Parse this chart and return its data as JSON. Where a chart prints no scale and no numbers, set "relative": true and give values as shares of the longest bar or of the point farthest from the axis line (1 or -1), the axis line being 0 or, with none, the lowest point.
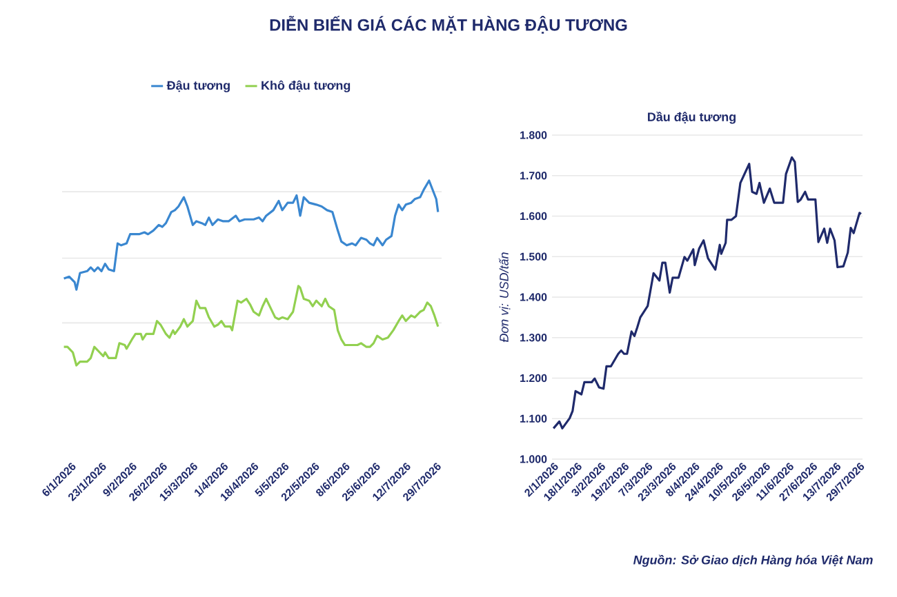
{
  "chart_data": [
    {
      "type": "line",
      "title": "DIỄN BIẾN GIÁ CÁC MẶT HÀNG ĐẬU TƯƠNG",
      "relative": true,
      "legend": "top",
      "grid": "y",
      "tick_labels": "x",
      "xlim": [
        "2026-01-01",
        "2026-08-01"
      ],
      "xticks": [
        {
          "value": "2026-01-06",
          "label": "6/1/2026"
        },
        {
          "value": "2026-01-23",
          "label": "23/1/2026"
        },
        {
          "value": "2026-02-09",
          "label": "9/2/2026"
        },
        {
          "value": "2026-02-26",
          "label": "26/2/2026"
        },
        {
          "value": "2026-03-15",
          "label": "15/3/2026"
        },
        {
          "value": "2026-04-01",
          "label": "1/4/2026"
        },
        {
          "value": "2026-04-18",
          "label": "18/4/2026"
        },
        {
          "value": "2026-05-05",
          "label": "5/5/2026"
        },
        {
          "value": "2026-05-22",
          "label": "22/5/2026"
        },
        {
          "value": "2026-06-08",
          "label": "8/6/2026"
        },
        {
          "value": "2026-06-25",
          "label": "25/6/2026"
        },
        {
          "value": "2026-07-12",
          "label": "12/7/2026"
        },
        {
          "value": "2026-07-29",
          "label": "29/7/2026"
        }
      ],
      "series": [
        {
          "name": "Đậu tương",
          "color": "#3a87d0",
          "x": [
            "2026-01-02",
            "2026-01-05",
            "2026-01-08",
            "2026-01-09",
            "2026-01-11",
            "2026-01-15",
            "2026-01-17",
            "2026-01-19",
            "2026-01-21",
            "2026-01-23",
            "2026-01-25",
            "2026-01-27",
            "2026-01-30",
            "2026-02-01",
            "2026-02-03",
            "2026-02-06",
            "2026-02-08",
            "2026-02-13",
            "2026-02-16",
            "2026-02-18",
            "2026-02-21",
            "2026-02-24",
            "2026-02-26",
            "2026-02-28",
            "2026-03-03",
            "2026-03-05",
            "2026-03-07",
            "2026-03-10",
            "2026-03-12",
            "2026-03-15",
            "2026-03-17",
            "2026-03-20",
            "2026-03-22",
            "2026-03-24",
            "2026-03-26",
            "2026-03-29",
            "2026-04-01",
            "2026-04-04",
            "2026-04-08",
            "2026-04-10",
            "2026-04-13",
            "2026-04-16",
            "2026-04-18",
            "2026-04-21",
            "2026-04-23",
            "2026-04-25",
            "2026-04-29",
            "2026-05-02",
            "2026-05-04",
            "2026-05-07",
            "2026-05-10",
            "2026-05-12",
            "2026-05-14",
            "2026-05-16",
            "2026-05-19",
            "2026-05-23",
            "2026-05-26",
            "2026-05-29",
            "2026-06-01",
            "2026-06-04",
            "2026-06-06",
            "2026-06-09",
            "2026-06-12",
            "2026-06-14",
            "2026-06-17",
            "2026-06-20",
            "2026-06-22",
            "2026-06-24",
            "2026-06-26",
            "2026-06-29",
            "2026-07-01",
            "2026-07-04",
            "2026-07-06",
            "2026-07-08",
            "2026-07-10",
            "2026-07-12",
            "2026-07-15",
            "2026-07-17",
            "2026-07-20",
            "2026-07-22",
            "2026-07-25",
            "2026-07-27",
            "2026-07-29",
            "2026-07-30"
          ],
          "values": [
            0.47,
            0.48,
            0.45,
            0.41,
            0.5,
            0.51,
            0.53,
            0.51,
            0.53,
            0.51,
            0.55,
            0.52,
            0.51,
            0.66,
            0.65,
            0.66,
            0.71,
            0.71,
            0.72,
            0.71,
            0.73,
            0.76,
            0.75,
            0.77,
            0.83,
            0.84,
            0.86,
            0.91,
            0.86,
            0.76,
            0.78,
            0.77,
            0.76,
            0.8,
            0.76,
            0.79,
            0.78,
            0.78,
            0.81,
            0.78,
            0.79,
            0.79,
            0.79,
            0.8,
            0.78,
            0.81,
            0.84,
            0.89,
            0.84,
            0.88,
            0.88,
            0.92,
            0.81,
            0.91,
            0.88,
            0.87,
            0.86,
            0.84,
            0.83,
            0.73,
            0.67,
            0.65,
            0.66,
            0.65,
            0.69,
            0.68,
            0.66,
            0.65,
            0.69,
            0.65,
            0.68,
            0.7,
            0.81,
            0.87,
            0.84,
            0.87,
            0.88,
            0.9,
            0.91,
            0.95,
            1,
            0.95,
            0.9,
            0.83
          ]
        },
        {
          "name": "Khô đậu tương",
          "color": "#92d050",
          "x": [
            "2026-01-02",
            "2026-01-04",
            "2026-01-07",
            "2026-01-09",
            "2026-01-11",
            "2026-01-15",
            "2026-01-17",
            "2026-01-19",
            "2026-01-22",
            "2026-01-24",
            "2026-01-25",
            "2026-01-27",
            "2026-01-30",
            "2026-01-31",
            "2026-02-02",
            "2026-02-05",
            "2026-02-06",
            "2026-02-09",
            "2026-02-11",
            "2026-02-14",
            "2026-02-15",
            "2026-02-17",
            "2026-02-21",
            "2026-02-23",
            "2026-02-25",
            "2026-02-28",
            "2026-03-02",
            "2026-03-04",
            "2026-03-05",
            "2026-03-08",
            "2026-03-10",
            "2026-03-12",
            "2026-03-15",
            "2026-03-17",
            "2026-03-19",
            "2026-03-22",
            "2026-03-24",
            "2026-03-27",
            "2026-03-29",
            "2026-03-31",
            "2026-04-02",
            "2026-04-05",
            "2026-04-06",
            "2026-04-09",
            "2026-04-11",
            "2026-04-14",
            "2026-04-16",
            "2026-04-18",
            "2026-04-21",
            "2026-04-23",
            "2026-04-25",
            "2026-04-28",
            "2026-04-30",
            "2026-05-02",
            "2026-05-04",
            "2026-05-07",
            "2026-05-10",
            "2026-05-13",
            "2026-05-14",
            "2026-05-16",
            "2026-05-19",
            "2026-05-21",
            "2026-05-23",
            "2026-05-26",
            "2026-05-28",
            "2026-05-30",
            "2026-06-02",
            "2026-06-04",
            "2026-06-06",
            "2026-06-08",
            "2026-06-12",
            "2026-06-15",
            "2026-06-17",
            "2026-06-20",
            "2026-06-22",
            "2026-06-24",
            "2026-06-26",
            "2026-06-29",
            "2026-07-02",
            "2026-07-05",
            "2026-07-08",
            "2026-07-10",
            "2026-07-12",
            "2026-07-15",
            "2026-07-17",
            "2026-07-20",
            "2026-07-22",
            "2026-07-24",
            "2026-07-26",
            "2026-07-28",
            "2026-07-29",
            "2026-07-30"
          ],
          "values": [
            0.1,
            0.1,
            0.07,
            0,
            0.02,
            0.02,
            0.04,
            0.1,
            0.07,
            0.05,
            0.07,
            0.04,
            0.04,
            0.04,
            0.12,
            0.11,
            0.09,
            0.14,
            0.17,
            0.17,
            0.14,
            0.17,
            0.17,
            0.24,
            0.22,
            0.17,
            0.15,
            0.19,
            0.17,
            0.21,
            0.25,
            0.21,
            0.24,
            0.35,
            0.31,
            0.31,
            0.26,
            0.21,
            0.22,
            0.24,
            0.21,
            0.21,
            0.19,
            0.35,
            0.34,
            0.36,
            0.33,
            0.29,
            0.27,
            0.32,
            0.36,
            0.3,
            0.26,
            0.25,
            0.26,
            0.25,
            0.29,
            0.43,
            0.42,
            0.36,
            0.35,
            0.32,
            0.35,
            0.32,
            0.36,
            0.32,
            0.3,
            0.19,
            0.14,
            0.11,
            0.11,
            0.11,
            0.12,
            0.1,
            0.1,
            0.12,
            0.16,
            0.14,
            0.15,
            0.19,
            0.24,
            0.27,
            0.24,
            0.27,
            0.26,
            0.29,
            0.3,
            0.34,
            0.32,
            0.27,
            0.24,
            0.21
          ]
        }
      ]
    },
    {
      "type": "line",
      "title": "Dầu đậu tương",
      "ylabel": "Đơn vị: USD/tấn",
      "grid": "y",
      "annotations": [
        "Nguồn: Sở Giao dịch Hàng hóa Việt Nam"
      ],
      "xlim": [
        "2026-01-01",
        "2026-07-31"
      ],
      "ylim": [
        1000,
        1800
      ],
      "yticks": [
        {
          "value": 1000,
          "label": "1.000"
        },
        {
          "value": 1100,
          "label": "1.100"
        },
        {
          "value": 1200,
          "label": "1.200"
        },
        {
          "value": 1300,
          "label": "1.300"
        },
        {
          "value": 1400,
          "label": "1.400"
        },
        {
          "value": 1500,
          "label": "1.500"
        },
        {
          "value": 1600,
          "label": "1.600"
        },
        {
          "value": 1700,
          "label": "1.700"
        },
        {
          "value": 1800,
          "label": "1.800"
        }
      ],
      "xticks": [
        {
          "value": "2026-01-02",
          "label": "2/1/2026"
        },
        {
          "value": "2026-01-18",
          "label": "18/1/2026"
        },
        {
          "value": "2026-02-03",
          "label": "3/2/2026"
        },
        {
          "value": "2026-02-19",
          "label": "19/2/2026"
        },
        {
          "value": "2026-03-07",
          "label": "7/3/2026"
        },
        {
          "value": "2026-03-23",
          "label": "23/3/2026"
        },
        {
          "value": "2026-04-08",
          "label": "8/4/2026"
        },
        {
          "value": "2026-04-24",
          "label": "24/4/2026"
        },
        {
          "value": "2026-05-10",
          "label": "10/5/2026"
        },
        {
          "value": "2026-05-26",
          "label": "26/5/2026"
        },
        {
          "value": "2026-06-11",
          "label": "11/6/2026"
        },
        {
          "value": "2026-06-27",
          "label": "27/6/2026"
        },
        {
          "value": "2026-07-13",
          "label": "13/7/2026"
        },
        {
          "value": "2026-07-29",
          "label": "29/7/2026"
        }
      ],
      "series": [
        {
          "color": "#1f2a6b",
          "x": [
            "2026-01-02",
            "2026-01-06",
            "2026-01-08",
            "2026-01-13",
            "2026-01-15",
            "2026-01-17",
            "2026-01-21",
            "2026-01-23",
            "2026-01-28",
            "2026-01-30",
            "2026-02-02",
            "2026-02-05",
            "2026-02-07",
            "2026-02-10",
            "2026-02-15",
            "2026-02-17",
            "2026-02-19",
            "2026-02-21",
            "2026-02-24",
            "2026-02-26",
            "2026-02-28",
            "2026-03-02",
            "2026-03-07",
            "2026-03-11",
            "2026-03-15",
            "2026-03-17",
            "2026-03-19",
            "2026-03-22",
            "2026-03-24",
            "2026-03-28",
            "2026-04-01",
            "2026-04-03",
            "2026-04-07",
            "2026-04-08",
            "2026-04-11",
            "2026-04-14",
            "2026-04-17",
            "2026-04-22",
            "2026-04-25",
            "2026-04-26",
            "2026-04-29",
            "2026-04-30",
            "2026-05-03",
            "2026-05-06",
            "2026-05-09",
            "2026-05-15",
            "2026-05-17",
            "2026-05-20",
            "2026-05-22",
            "2026-05-25",
            "2026-05-29",
            "2026-06-01",
            "2026-06-07",
            "2026-06-09",
            "2026-06-13",
            "2026-06-15",
            "2026-06-17",
            "2026-06-19",
            "2026-06-22",
            "2026-06-24",
            "2026-06-29",
            "2026-07-01",
            "2026-07-05",
            "2026-07-07",
            "2026-07-09",
            "2026-07-12",
            "2026-07-14",
            "2026-07-18",
            "2026-07-21",
            "2026-07-23",
            "2026-07-25",
            "2026-07-29",
            "2026-07-30"
          ],
          "values": [
            1076,
            1093,
            1076,
            1101,
            1119,
            1168,
            1160,
            1190,
            1190,
            1199,
            1177,
            1174,
            1229,
            1229,
            1260,
            1268,
            1260,
            1260,
            1315,
            1304,
            1326,
            1350,
            1378,
            1459,
            1441,
            1485,
            1485,
            1411,
            1448,
            1448,
            1499,
            1490,
            1518,
            1479,
            1520,
            1540,
            1496,
            1468,
            1529,
            1507,
            1534,
            1591,
            1591,
            1600,
            1682,
            1729,
            1660,
            1655,
            1682,
            1633,
            1668,
            1633,
            1633,
            1704,
            1745,
            1734,
            1635,
            1641,
            1660,
            1641,
            1641,
            1536,
            1569,
            1534,
            1569,
            1540,
            1474,
            1476,
            1510,
            1571,
            1558,
            1608,
            1605
          ]
        }
      ]
    }
  ]
}
